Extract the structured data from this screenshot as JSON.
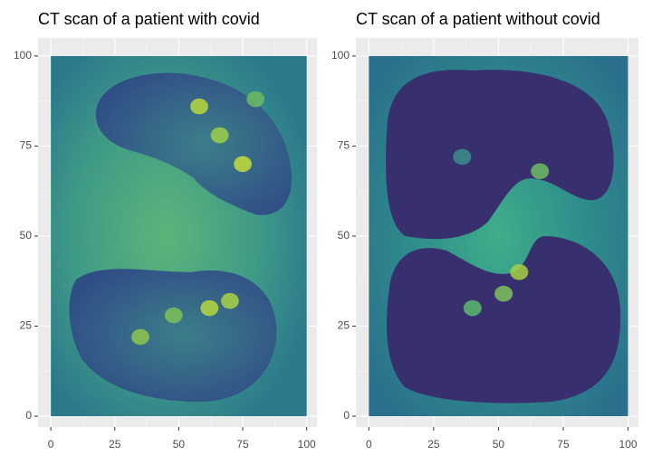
{
  "chart_data": [
    {
      "type": "raster",
      "title": "CT scan of a patient with covid",
      "xlim": [
        -5,
        104
      ],
      "ylim": [
        -3,
        105
      ],
      "xticks": [
        0,
        25,
        50,
        75,
        100
      ],
      "yticks": [
        0,
        25,
        50,
        75,
        100
      ],
      "grid": true
    },
    {
      "type": "raster",
      "title": "CT scan of a patient without covid",
      "xlim": [
        -5,
        104
      ],
      "ylim": [
        -3,
        105
      ],
      "xticks": [
        0,
        25,
        50,
        75,
        100
      ],
      "yticks": [
        0,
        25,
        50,
        75,
        100
      ],
      "grid": true
    }
  ]
}
